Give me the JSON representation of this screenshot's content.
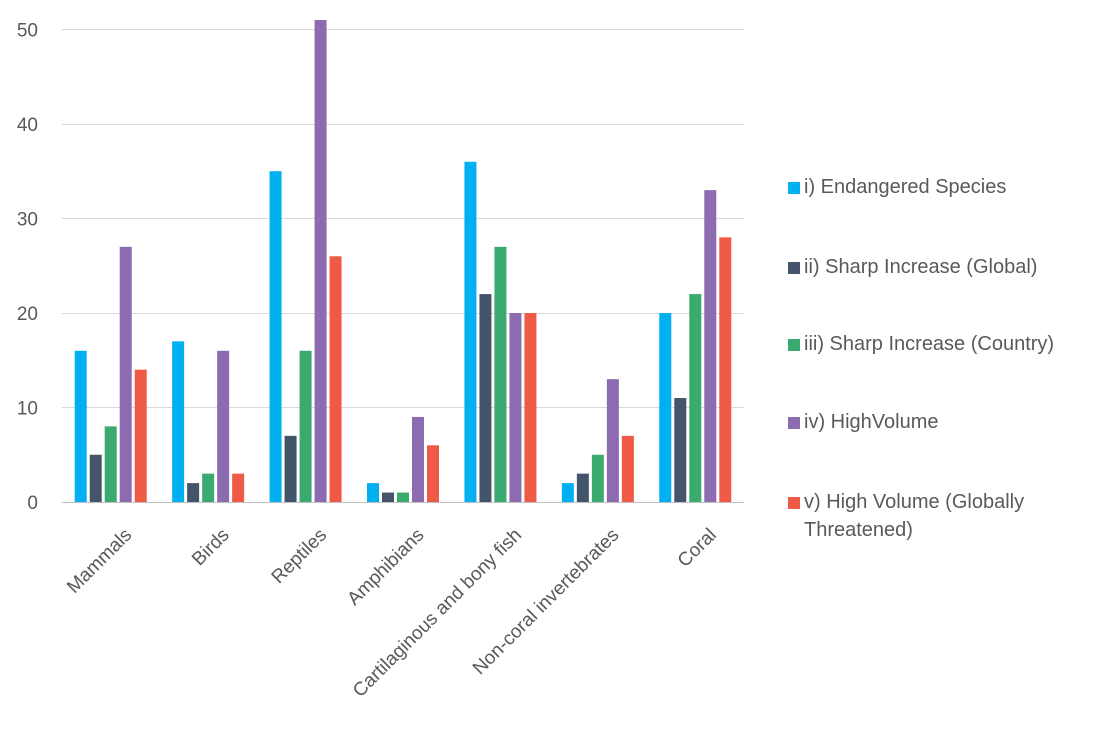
{
  "chart_data": {
    "type": "bar",
    "categories": [
      "Mammals",
      "Birds",
      "Reptiles",
      "Amphibians",
      "Cartilaginous and bony fish",
      "Non-coral invertebrates",
      "Coral"
    ],
    "series": [
      {
        "name": "i) Endangered Species",
        "color": "#00B0F0",
        "values": [
          16,
          17,
          35,
          2,
          36,
          2,
          20
        ]
      },
      {
        "name": "ii) Sharp Increase (Global)",
        "color": "#44546A",
        "values": [
          5,
          2,
          7,
          1,
          22,
          3,
          11
        ]
      },
      {
        "name": "iii) Sharp Increase (Country)",
        "color": "#3BAA6E",
        "values": [
          8,
          3,
          16,
          1,
          27,
          5,
          22
        ]
      },
      {
        "name": "iv) HighVolume",
        "color": "#8C6BB1",
        "values": [
          27,
          16,
          51,
          9,
          20,
          13,
          33
        ]
      },
      {
        "name": "v) High Volume (Globally Threatened)",
        "color": "#EE5A45",
        "values": [
          14,
          3,
          26,
          6,
          20,
          7,
          28
        ]
      }
    ],
    "yticks": [
      0,
      10,
      20,
      30,
      40,
      50
    ],
    "ylim": [
      0,
      51
    ],
    "grid": true,
    "legend_position": "right"
  }
}
